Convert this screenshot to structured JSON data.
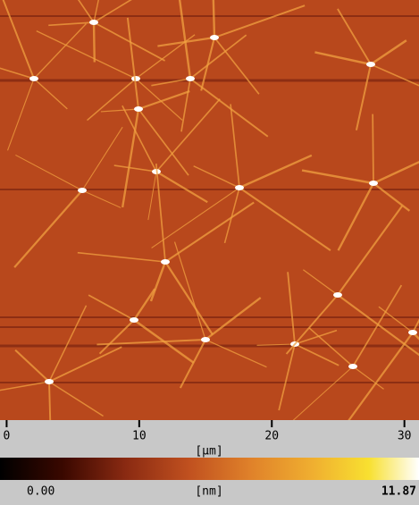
{
  "x_axis": {
    "ticks": [
      0,
      10,
      20,
      30
    ],
    "xlim": [
      -0.5,
      31.1
    ],
    "label": "[μm]"
  },
  "colorbar": {
    "min_label": "0.00",
    "unit": "[nm]",
    "max_label": "11.87"
  }
}
